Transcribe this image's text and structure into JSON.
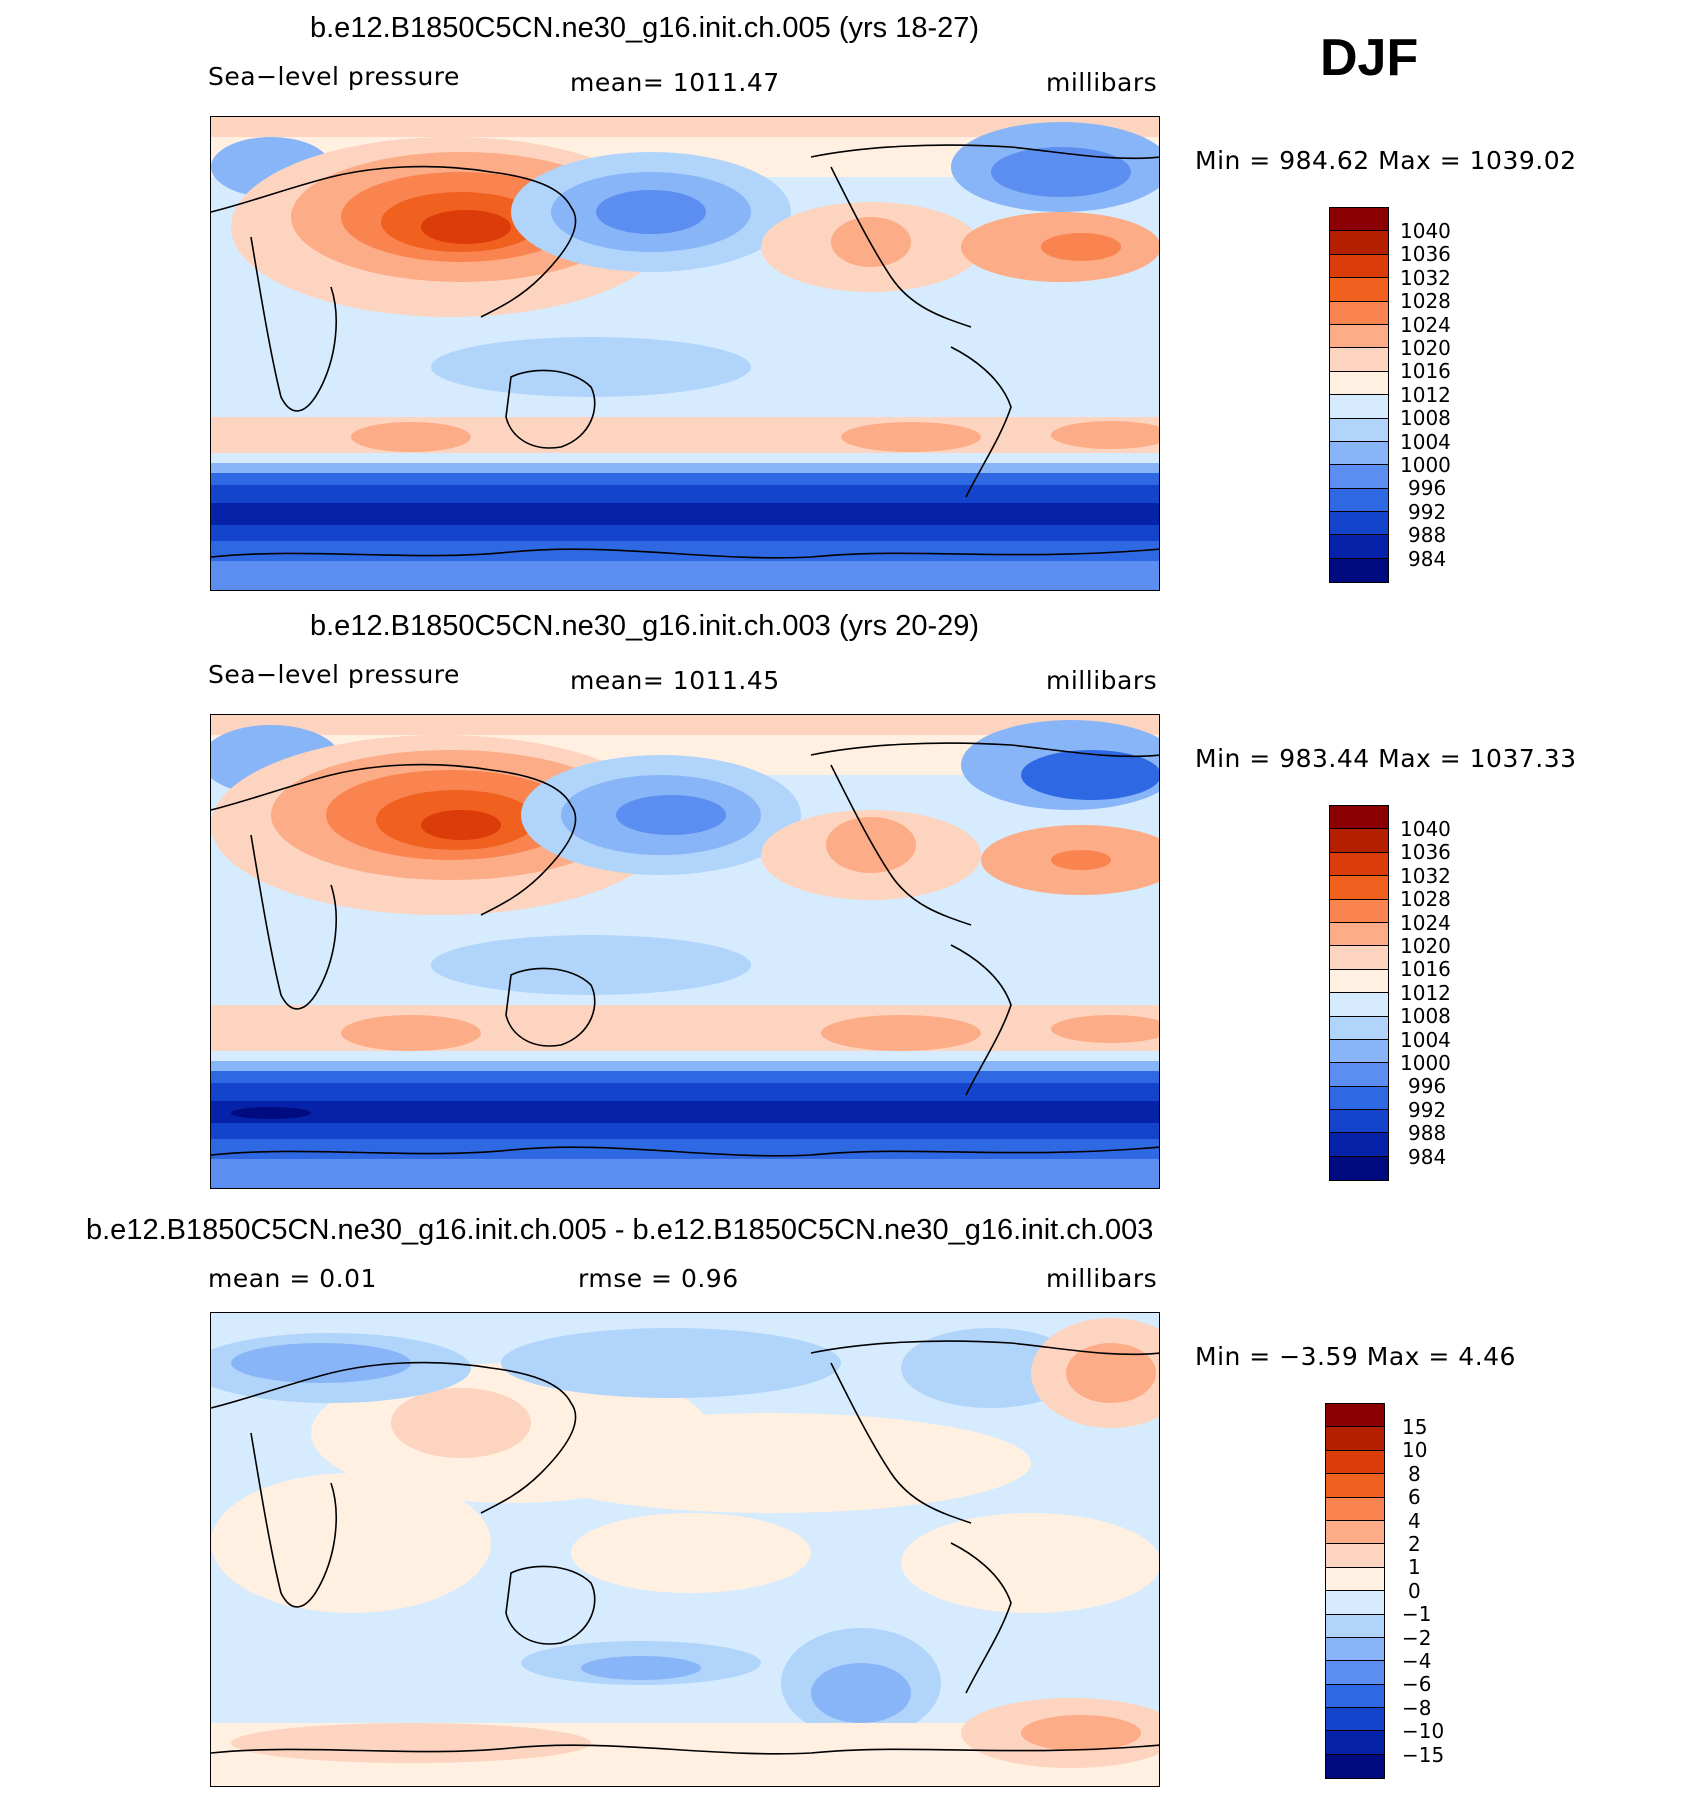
{
  "season": "DJF",
  "panels": [
    {
      "title": "b.e12.B1850C5CN.ne30_g16.init.ch.005 (yrs 18-27)",
      "left_label": "Sea−level pressure",
      "center_label": "mean=  1011.47",
      "right_label": "millibars",
      "minmax": "Min  =  984.62  Max  =  1039.02",
      "colorbar_labels": [
        "1040",
        "1036",
        "1032",
        "1028",
        "1024",
        "1020",
        "1016",
        "1012",
        "1008",
        "1004",
        "1000",
        "996",
        "992",
        "988",
        "984"
      ]
    },
    {
      "title": "b.e12.B1850C5CN.ne30_g16.init.ch.003 (yrs 20-29)",
      "left_label": "Sea−level pressure",
      "center_label": "mean=  1011.45",
      "right_label": "millibars",
      "minmax": "Min  =  983.44  Max  =  1037.33",
      "colorbar_labels": [
        "1040",
        "1036",
        "1032",
        "1028",
        "1024",
        "1020",
        "1016",
        "1012",
        "1008",
        "1004",
        "1000",
        "996",
        "992",
        "988",
        "984"
      ]
    },
    {
      "title": "b.e12.B1850C5CN.ne30_g16.init.ch.005 - b.e12.B1850C5CN.ne30_g16.init.ch.003",
      "left_label": "mean  =     0.01",
      "center_label": "rmse  =     0.96",
      "right_label": "millibars",
      "minmax": "Min  =   −3.59  Max  =     4.46",
      "colorbar_labels": [
        "15",
        "10",
        "8",
        "6",
        "4",
        "2",
        "1",
        "0",
        "−1",
        "−2",
        "−4",
        "−6",
        "−8",
        "−10",
        "−15"
      ]
    }
  ],
  "colors": {
    "abs_scale": [
      "#8b0000",
      "#b41f00",
      "#dc3b0a",
      "#f0601f",
      "#fa8450",
      "#fcac86",
      "#fdd4bf",
      "#fff0e2",
      "#d6ebfd",
      "#b1d4fb",
      "#87b5f7",
      "#5b8ef0",
      "#2f68e3",
      "#1444cc",
      "#0622a8",
      "#000b80"
    ],
    "diff_scale": [
      "#8b0000",
      "#b41f00",
      "#dc3b0a",
      "#f0601f",
      "#fa8450",
      "#fcac86",
      "#fdd4bf",
      "#fff0e2",
      "#d6ebfd",
      "#b1d4fb",
      "#87b5f7",
      "#5b8ef0",
      "#2f68e3",
      "#1444cc",
      "#0622a8",
      "#000b80"
    ]
  },
  "chart_data": [
    {
      "type": "heatmap",
      "title": "b.e12.B1850C5CN.ne30_g16.init.ch.005 (yrs 18-27)",
      "variable": "Sea−level pressure",
      "units": "millibars",
      "mean": 1011.47,
      "min": 984.62,
      "max": 1039.02,
      "contour_levels": [
        984,
        988,
        992,
        996,
        1000,
        1004,
        1008,
        1012,
        1016,
        1020,
        1024,
        1028,
        1032,
        1036,
        1040
      ]
    },
    {
      "type": "heatmap",
      "title": "b.e12.B1850C5CN.ne30_g16.init.ch.003 (yrs 20-29)",
      "variable": "Sea−level pressure",
      "units": "millibars",
      "mean": 1011.45,
      "min": 983.44,
      "max": 1037.33,
      "contour_levels": [
        984,
        988,
        992,
        996,
        1000,
        1004,
        1008,
        1012,
        1016,
        1020,
        1024,
        1028,
        1032,
        1036,
        1040
      ]
    },
    {
      "type": "heatmap",
      "title": "b.e12.B1850C5CN.ne30_g16.init.ch.005 - b.e12.B1850C5CN.ne30_g16.init.ch.003",
      "units": "millibars",
      "mean": 0.01,
      "rmse": 0.96,
      "min": -3.59,
      "max": 4.46,
      "contour_levels": [
        -15,
        -10,
        -8,
        -6,
        -4,
        -2,
        -1,
        0,
        1,
        2,
        4,
        6,
        8,
        10,
        15
      ]
    }
  ]
}
